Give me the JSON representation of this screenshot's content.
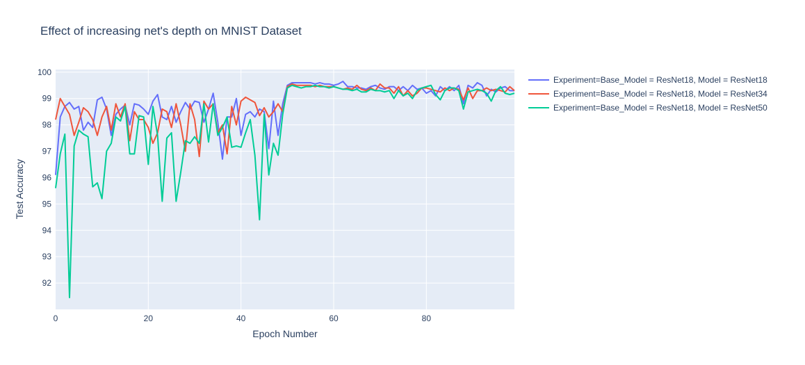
{
  "chart_data": {
    "type": "line",
    "title": "Effect of increasing net's depth on MNIST Dataset",
    "xlabel": "Epoch Number",
    "ylabel": "Test Accuracy",
    "xlim": [
      0,
      99
    ],
    "ylim": [
      91,
      100.1
    ],
    "x_ticks": [
      0,
      20,
      40,
      60,
      80
    ],
    "y_ticks": [
      92,
      93,
      94,
      95,
      96,
      97,
      98,
      99,
      100
    ],
    "grid": true,
    "legend_position": "top-right",
    "series": [
      {
        "name": "Experiment=Base_Model = ResNet18, Model = ResNet18",
        "color": "#636efa",
        "values": [
          96.1,
          98.3,
          98.7,
          98.85,
          98.6,
          98.7,
          97.8,
          98.1,
          97.9,
          98.95,
          99.05,
          98.6,
          97.6,
          98.4,
          98.6,
          98.75,
          98.0,
          98.8,
          98.75,
          98.6,
          98.4,
          98.9,
          99.15,
          98.3,
          98.2,
          98.7,
          98.1,
          98.5,
          98.85,
          98.6,
          98.9,
          98.85,
          98.1,
          98.6,
          99.2,
          98.1,
          96.7,
          98.3,
          98.3,
          99.0,
          97.6,
          98.4,
          98.5,
          98.3,
          98.6,
          98.5,
          97.1,
          98.9,
          97.6,
          98.8,
          99.5,
          99.6,
          99.6,
          99.6,
          99.6,
          99.6,
          99.55,
          99.6,
          99.55,
          99.55,
          99.5,
          99.55,
          99.65,
          99.45,
          99.45,
          99.4,
          99.4,
          99.35,
          99.45,
          99.5,
          99.4,
          99.35,
          99.45,
          99.45,
          99.3,
          99.45,
          99.3,
          99.5,
          99.35,
          99.4,
          99.2,
          99.3,
          99.1,
          99.45,
          99.3,
          99.45,
          99.3,
          99.5,
          98.8,
          99.5,
          99.4,
          99.6,
          99.5,
          99.1,
          99.35,
          99.25,
          99.4,
          99.45,
          99.3,
          99.3
        ]
      },
      {
        "name": "Experiment=Base_Model = ResNet18, Model = ResNet34",
        "color": "#ef553b",
        "values": [
          98.2,
          99.0,
          98.7,
          98.4,
          97.6,
          98.1,
          98.65,
          98.5,
          98.2,
          97.6,
          98.3,
          98.7,
          97.8,
          98.8,
          98.3,
          98.8,
          97.4,
          98.5,
          98.2,
          98.2,
          97.9,
          97.3,
          97.7,
          98.6,
          98.5,
          97.9,
          98.8,
          98.0,
          97.0,
          98.8,
          98.2,
          96.8,
          98.9,
          98.6,
          98.8,
          97.7,
          98.0,
          96.9,
          98.7,
          98.0,
          98.9,
          99.05,
          98.95,
          98.85,
          98.35,
          98.65,
          98.3,
          98.5,
          98.8,
          98.5,
          99.45,
          99.55,
          99.5,
          99.5,
          99.5,
          99.5,
          99.45,
          99.5,
          99.45,
          99.45,
          99.45,
          99.4,
          99.35,
          99.4,
          99.35,
          99.5,
          99.35,
          99.3,
          99.4,
          99.3,
          99.55,
          99.4,
          99.4,
          99.2,
          99.45,
          99.1,
          99.3,
          99.1,
          99.2,
          99.4,
          99.4,
          99.35,
          99.3,
          99.25,
          99.4,
          99.3,
          99.4,
          99.35,
          98.95,
          99.4,
          99.0,
          99.3,
          99.3,
          99.4,
          99.3,
          99.35,
          99.3,
          99.25,
          99.45,
          99.3
        ]
      },
      {
        "name": "Experiment=Base_Model = ResNet18, Model = ResNet50",
        "color": "#00cc96",
        "values": [
          95.6,
          96.9,
          97.65,
          91.45,
          97.2,
          97.8,
          97.65,
          97.55,
          95.65,
          95.8,
          95.2,
          97.0,
          97.3,
          98.3,
          98.15,
          98.7,
          96.9,
          96.9,
          98.35,
          98.3,
          96.5,
          98.7,
          97.6,
          95.1,
          97.5,
          97.7,
          95.1,
          96.2,
          97.4,
          97.3,
          97.55,
          97.3,
          98.8,
          97.35,
          98.8,
          97.6,
          97.9,
          98.3,
          97.15,
          97.2,
          97.15,
          97.7,
          98.2,
          96.85,
          94.4,
          98.4,
          96.1,
          97.3,
          96.85,
          98.4,
          99.4,
          99.5,
          99.45,
          99.4,
          99.45,
          99.45,
          99.5,
          99.45,
          99.45,
          99.4,
          99.45,
          99.4,
          99.35,
          99.35,
          99.3,
          99.35,
          99.25,
          99.25,
          99.35,
          99.3,
          99.3,
          99.25,
          99.3,
          99.0,
          99.3,
          99.1,
          99.2,
          99.0,
          99.3,
          99.4,
          99.45,
          99.5,
          99.15,
          98.95,
          99.3,
          99.4,
          99.4,
          99.3,
          98.6,
          99.25,
          99.3,
          99.35,
          99.3,
          99.2,
          98.9,
          99.3,
          99.45,
          99.2,
          99.15,
          99.2
        ]
      }
    ]
  }
}
